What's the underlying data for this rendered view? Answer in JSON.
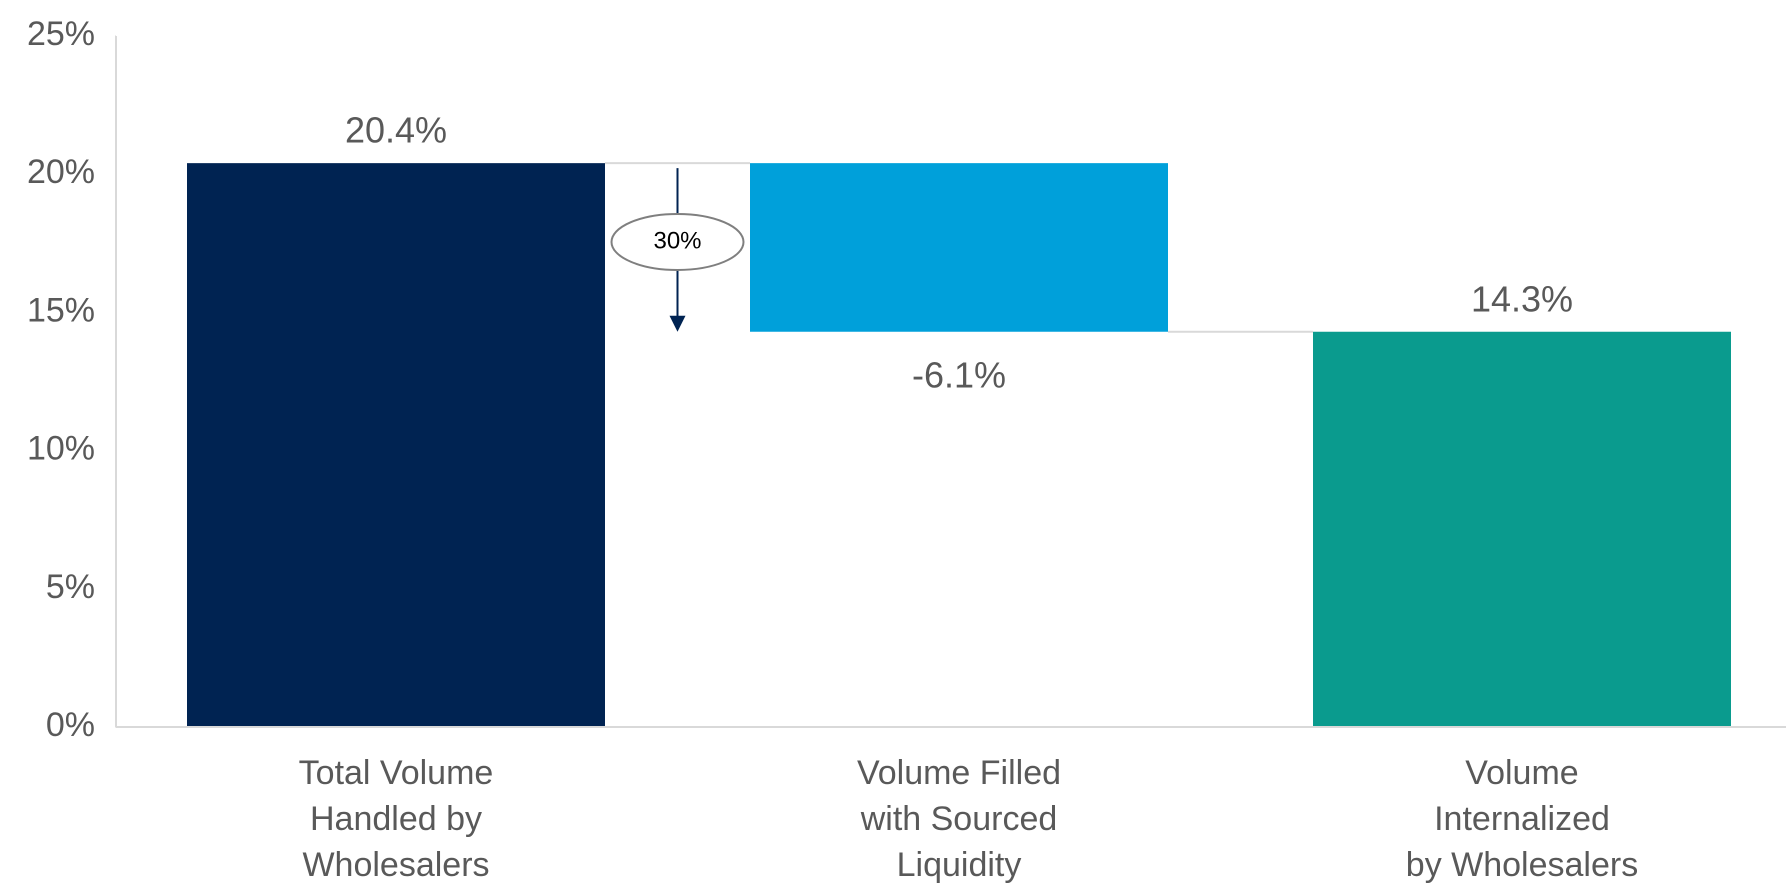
{
  "chart_data": {
    "type": "waterfall",
    "categories": [
      [
        "Total Volume",
        "Handled by",
        "Wholesalers"
      ],
      [
        "Volume Filled",
        "with Sourced",
        "Liquidity"
      ],
      [
        "Volume",
        "Internalized",
        "by Wholesalers"
      ]
    ],
    "values": [
      20.4,
      -6.1,
      14.3
    ],
    "value_labels": [
      "20.4%",
      "-6.1%",
      "14.3%"
    ],
    "colors": [
      "#002352",
      "#00a0da",
      "#0a9b8e"
    ],
    "annotation": "30%",
    "ylim": [
      0,
      25
    ],
    "yticks": [
      {
        "value": 0,
        "label": "0%"
      },
      {
        "value": 5,
        "label": "5%"
      },
      {
        "value": 10,
        "label": "10%"
      },
      {
        "value": 15,
        "label": "15%"
      },
      {
        "value": 20,
        "label": "20%"
      },
      {
        "value": 25,
        "label": "25%"
      }
    ],
    "grid": false
  }
}
